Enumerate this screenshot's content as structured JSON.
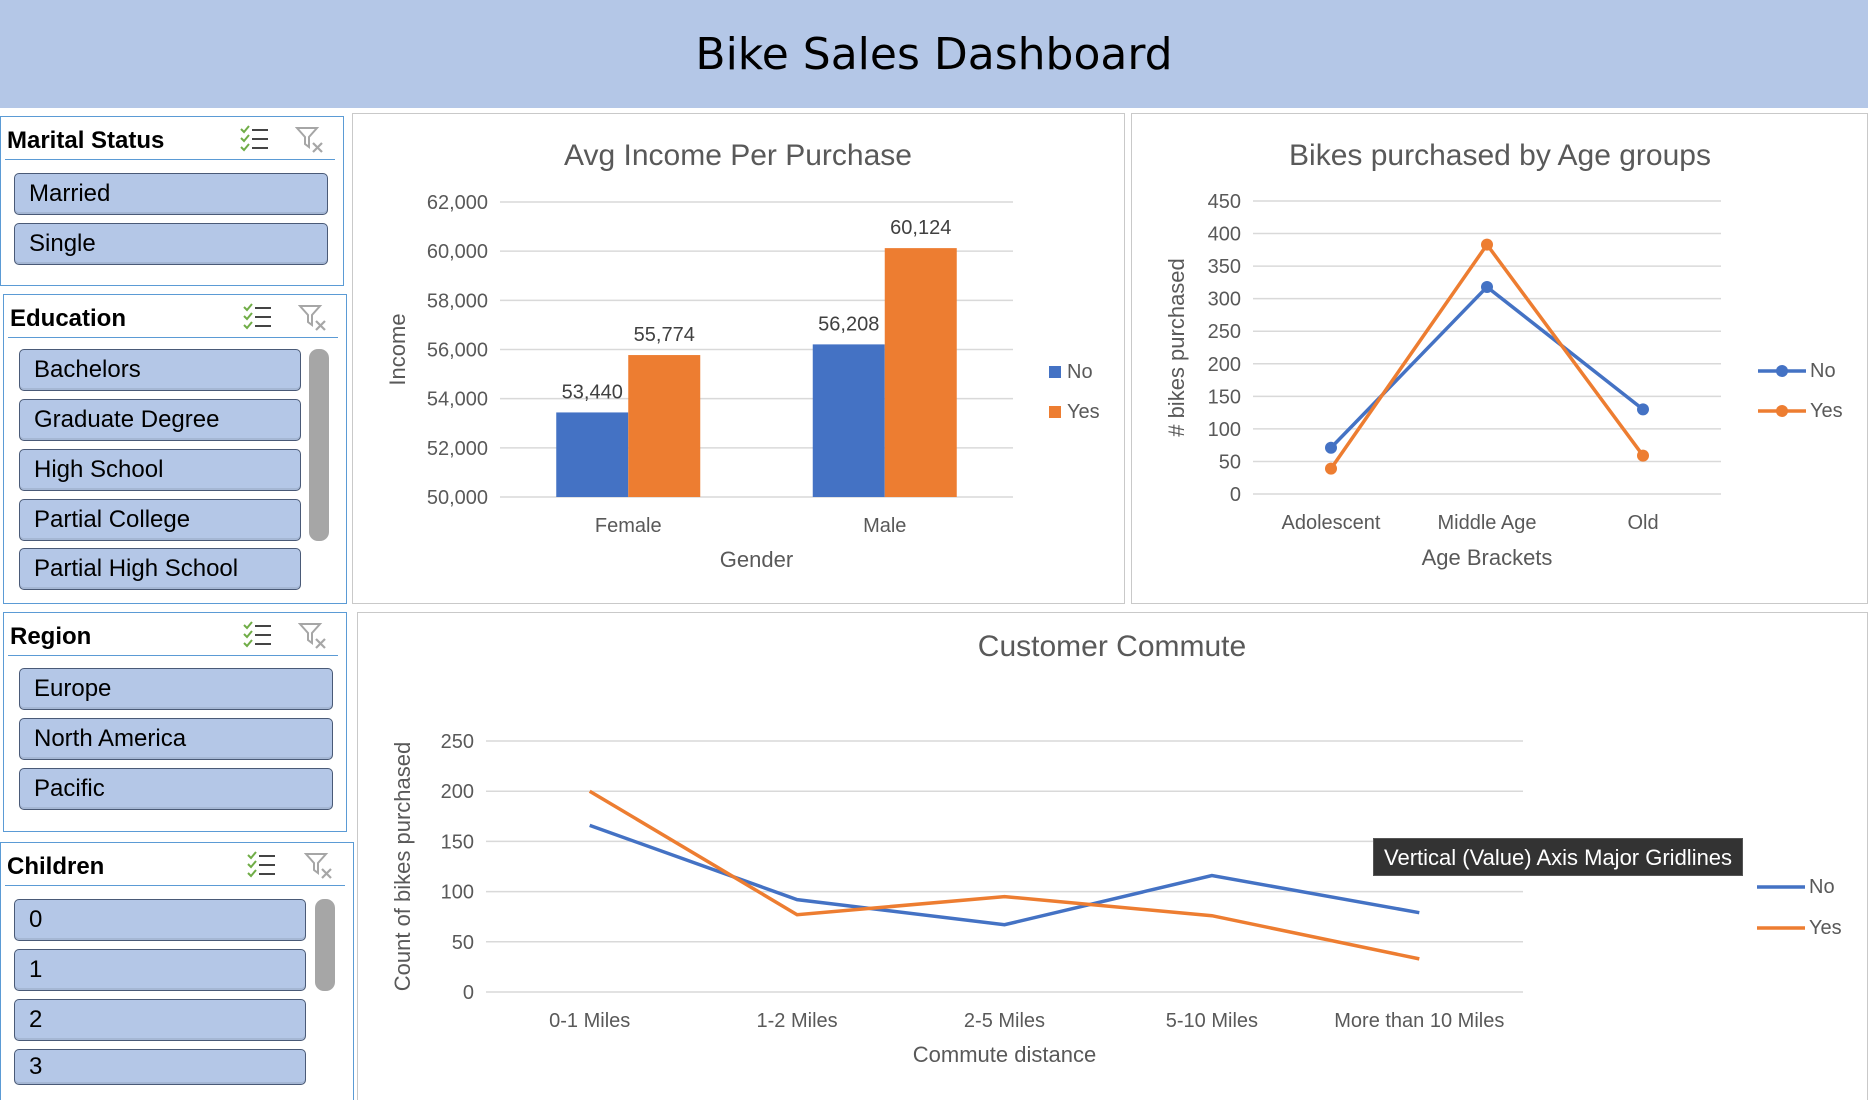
{
  "header": {
    "title": "Bike Sales Dashboard"
  },
  "slicers": {
    "marital": {
      "label": "Marital Status",
      "items": [
        "Married",
        "Single"
      ]
    },
    "education": {
      "label": "Education",
      "items": [
        "Bachelors",
        "Graduate Degree",
        "High School",
        "Partial College",
        "Partial High School"
      ]
    },
    "region": {
      "label": "Region",
      "items": [
        "Europe",
        "North America",
        "Pacific"
      ]
    },
    "children": {
      "label": "Children",
      "items": [
        "0",
        "1",
        "2",
        "3"
      ]
    }
  },
  "icons": {
    "multi_select": "multi-select-icon",
    "clear_filter": "clear-filter-icon"
  },
  "colors": {
    "banner": "#b4c7e7",
    "slicer_item": "#b4c7e7",
    "series_no": "#4472c4",
    "series_yes": "#ed7d31",
    "grid": "#d9d9d9",
    "slicer_border": "#5b9bd5"
  },
  "tooltip": {
    "text": "Vertical (Value) Axis Major Gridlines"
  },
  "chart_data": [
    {
      "type": "bar",
      "title": "Avg Income Per Purchase",
      "xlabel": "Gender",
      "ylabel": "Income",
      "categories": [
        "Female",
        "Male"
      ],
      "series": [
        {
          "name": "No",
          "values": [
            53440,
            56208
          ],
          "labels": [
            "53,440",
            "56,208"
          ]
        },
        {
          "name": "Yes",
          "values": [
            55774,
            60124
          ],
          "labels": [
            "55,774",
            "60,124"
          ]
        }
      ],
      "ylim": [
        50000,
        62000
      ],
      "yticks": [
        "50,000",
        "52,000",
        "54,000",
        "56,000",
        "58,000",
        "60,000",
        "62,000"
      ],
      "grid": true,
      "legend": "right"
    },
    {
      "type": "line",
      "title": "Bikes purchased by Age groups",
      "xlabel": "Age Brackets",
      "ylabel": "# bikes purchased",
      "categories": [
        "Adolescent",
        "Middle Age",
        "Old"
      ],
      "series": [
        {
          "name": "No",
          "values": [
            71,
            318,
            130
          ]
        },
        {
          "name": "Yes",
          "values": [
            39,
            383,
            59
          ]
        }
      ],
      "ylim": [
        0,
        450
      ],
      "yticks": [
        "0",
        "50",
        "100",
        "150",
        "200",
        "250",
        "300",
        "350",
        "400",
        "450"
      ],
      "markers": true,
      "grid": true,
      "legend": "right"
    },
    {
      "type": "line",
      "title": "Customer Commute",
      "xlabel": "Commute distance",
      "ylabel": "Count of bikes purchased",
      "categories": [
        "0-1 Miles",
        "1-2 Miles",
        "2-5 Miles",
        "5-10 Miles",
        "More than 10 Miles"
      ],
      "series": [
        {
          "name": "No",
          "values": [
            166,
            92,
            67,
            116,
            79
          ]
        },
        {
          "name": "Yes",
          "values": [
            200,
            77,
            95,
            76,
            33
          ]
        }
      ],
      "ylim": [
        0,
        250
      ],
      "yticks": [
        "0",
        "50",
        "100",
        "150",
        "200",
        "250"
      ],
      "markers": false,
      "grid": true,
      "legend": "right"
    }
  ]
}
